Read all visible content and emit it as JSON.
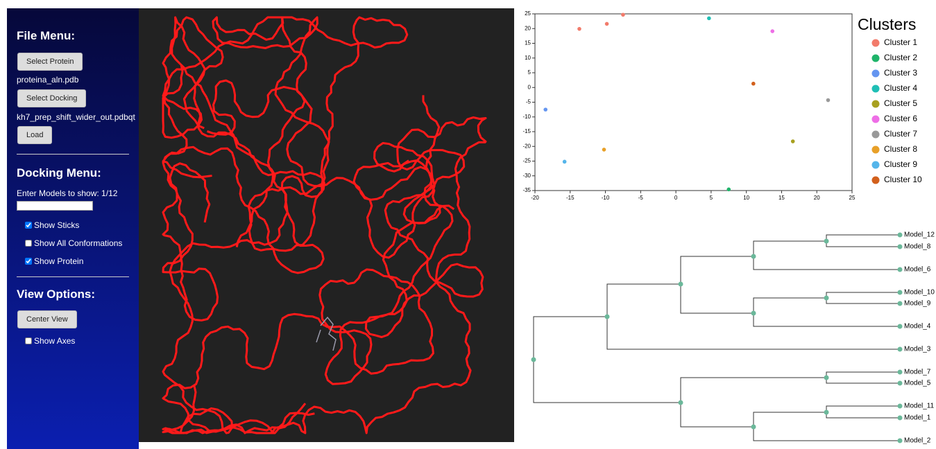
{
  "sidebar": {
    "file_menu": {
      "title": "File Menu:",
      "select_protein": "Select Protein",
      "protein_file": "proteina_aln.pdb",
      "select_docking": "Select Docking",
      "docking_file": "kh7_prep_shift_wider_out.pdbqt",
      "load": "Load"
    },
    "docking_menu": {
      "title": "Docking Menu:",
      "models_label": "Enter Models to show: 1/12",
      "options": [
        {
          "label": "Show Sticks",
          "checked": true
        },
        {
          "label": "Show All Conformations",
          "checked": false
        },
        {
          "label": "Show Protein",
          "checked": true
        }
      ]
    },
    "view_options": {
      "title": "View Options:",
      "center_view": "Center View",
      "options": [
        {
          "label": "Show Axes",
          "checked": false
        }
      ]
    }
  },
  "chart_data": {
    "type": "scatter",
    "legend_title": "Clusters",
    "xlim": [
      -20,
      25
    ],
    "ylim": [
      -35,
      25
    ],
    "xticks": [
      -20,
      -15,
      -10,
      -5,
      0,
      5,
      10,
      15,
      20,
      25
    ],
    "yticks": [
      -35,
      -30,
      -25,
      -20,
      -15,
      -10,
      -5,
      0,
      5,
      10,
      15,
      20,
      25
    ],
    "series": [
      {
        "name": "Cluster 1",
        "color": "#f27b6b",
        "x": [
          -7.5,
          -9.8,
          -13.7
        ],
        "values": [
          24.7,
          21.6,
          19.9
        ]
      },
      {
        "name": "Cluster 2",
        "color": "#1fb46a",
        "x": [
          7.5
        ],
        "values": [
          -34.6
        ]
      },
      {
        "name": "Cluster 3",
        "color": "#6495f0",
        "x": [
          -18.5
        ],
        "values": [
          -7.5
        ]
      },
      {
        "name": "Cluster 4",
        "color": "#1fbfb5",
        "x": [
          4.7
        ],
        "values": [
          23.5
        ]
      },
      {
        "name": "Cluster 5",
        "color": "#a8a020",
        "x": [
          16.6
        ],
        "values": [
          -18.3
        ]
      },
      {
        "name": "Cluster 6",
        "color": "#ee6ee6",
        "x": [
          13.7
        ],
        "values": [
          19.1
        ]
      },
      {
        "name": "Cluster 7",
        "color": "#999999",
        "x": [
          21.6
        ],
        "values": [
          -4.3
        ]
      },
      {
        "name": "Cluster 8",
        "color": "#e8a028",
        "x": [
          -10.2
        ],
        "values": [
          -21.1
        ]
      },
      {
        "name": "Cluster 9",
        "color": "#55b5ea",
        "x": [
          -15.8
        ],
        "values": [
          -25.2
        ]
      },
      {
        "name": "Cluster 10",
        "color": "#d2601c",
        "x": [
          11
        ],
        "values": [
          1.3
        ]
      }
    ]
  },
  "dendrogram": {
    "leaves": [
      "Model_12",
      "Model_8",
      "Model_6",
      "Model_10",
      "Model_9",
      "Model_4",
      "Model_3",
      "Model_7",
      "Model_5",
      "Model_11",
      "Model_1",
      "Model_2"
    ]
  }
}
